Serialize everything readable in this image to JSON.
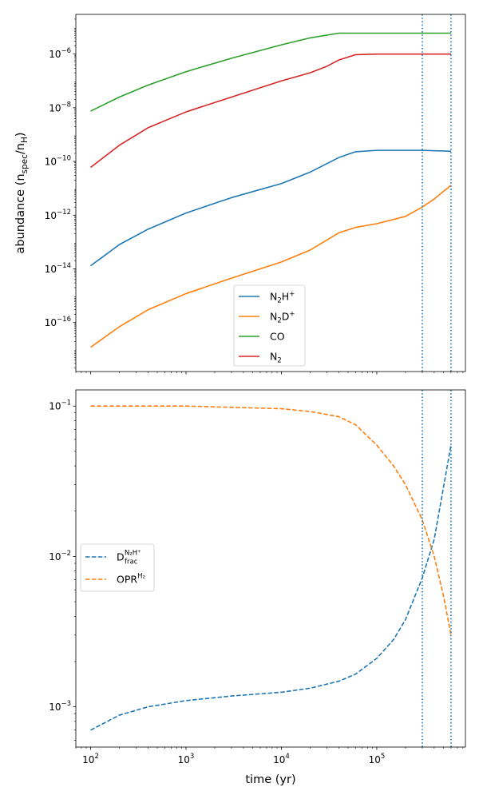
{
  "chart_data": [
    {
      "type": "line",
      "title": "",
      "xlabel": "",
      "ylabel": "abundance (n",
      "ylabel_sub1": "spec",
      "ylabel_mid": "/n",
      "ylabel_sub2": "H",
      "ylabel_end": ")",
      "xscale": "log",
      "yscale": "log",
      "xlim": [
        70,
        850000
      ],
      "ylim": [
        1.5e-18,
        3e-05
      ],
      "x_ticks": [],
      "y_ticks": [
        {
          "value": 1e-06,
          "base": "10",
          "exp": "−6"
        },
        {
          "value": 1e-08,
          "base": "10",
          "exp": "−8"
        },
        {
          "value": 1e-10,
          "base": "10",
          "exp": "−10"
        },
        {
          "value": 1e-12,
          "base": "10",
          "exp": "−12"
        },
        {
          "value": 1e-14,
          "base": "10",
          "exp": "−14"
        },
        {
          "value": 1e-16,
          "base": "10",
          "exp": "−16"
        }
      ],
      "vlines": [
        300000,
        600000
      ],
      "legend_position": "lower-center",
      "series": [
        {
          "name": "N2H+",
          "label_main": "N",
          "label_sub": "2",
          "label_rest": "H",
          "label_sup": "+",
          "color": "#1f77b4",
          "dash": "solid",
          "x": [
            100,
            200,
            400,
            1000,
            3000,
            10000,
            20000,
            40000,
            60000,
            100000,
            300000,
            600000
          ],
          "y": [
            1.3e-14,
            8e-14,
            3e-13,
            1.2e-12,
            4.5e-12,
            1.5e-11,
            4e-11,
            1.4e-10,
            2.3e-10,
            2.6e-10,
            2.6e-10,
            2.4e-10
          ]
        },
        {
          "name": "N2D+",
          "label_main": "N",
          "label_sub": "2",
          "label_rest": "D",
          "label_sup": "+",
          "color": "#ff7f0e",
          "dash": "solid",
          "x": [
            100,
            200,
            400,
            1000,
            3000,
            10000,
            20000,
            40000,
            60000,
            100000,
            200000,
            300000,
            400000,
            600000
          ],
          "y": [
            1.2e-17,
            7e-17,
            3e-16,
            1.2e-15,
            4.5e-15,
            1.8e-14,
            5e-14,
            2.2e-13,
            3.5e-13,
            4.8e-13,
            9e-13,
            2e-12,
            4e-12,
            1.3e-11
          ]
        },
        {
          "name": "CO",
          "label_main": "CO",
          "label_sub": "",
          "label_rest": "",
          "label_sup": "",
          "color": "#2ca02c",
          "dash": "solid",
          "x": [
            100,
            200,
            400,
            1000,
            3000,
            10000,
            20000,
            40000,
            100000,
            600000
          ],
          "y": [
            7.5e-09,
            2.5e-08,
            7e-08,
            2.2e-07,
            7e-07,
            2.2e-06,
            4e-06,
            6e-06,
            6e-06,
            6e-06
          ]
        },
        {
          "name": "N2",
          "label_main": "N",
          "label_sub": "2",
          "label_rest": "",
          "label_sup": "",
          "color": "#d62728",
          "dash": "solid",
          "x": [
            100,
            200,
            400,
            1000,
            3000,
            10000,
            20000,
            30000,
            40000,
            60000,
            100000,
            600000
          ],
          "y": [
            6e-11,
            4e-10,
            1.8e-09,
            7e-09,
            2.5e-08,
            1e-07,
            2e-07,
            3.5e-07,
            6e-07,
            9.5e-07,
            1e-06,
            1e-06
          ]
        }
      ]
    },
    {
      "type": "line",
      "title": "",
      "xlabel": "time (yr)",
      "ylabel": "",
      "xscale": "log",
      "yscale": "log",
      "xlim": [
        70,
        850000
      ],
      "ylim": [
        0.00054,
        0.128
      ],
      "x_ticks": [
        {
          "value": 100,
          "base": "10",
          "exp": "2"
        },
        {
          "value": 1000,
          "base": "10",
          "exp": "3"
        },
        {
          "value": 10000,
          "base": "10",
          "exp": "4"
        },
        {
          "value": 100000,
          "base": "10",
          "exp": "5"
        }
      ],
      "y_ticks": [
        {
          "value": 0.1,
          "base": "10",
          "exp": "−1"
        },
        {
          "value": 0.01,
          "base": "10",
          "exp": "−2"
        },
        {
          "value": 0.001,
          "base": "10",
          "exp": "−3"
        }
      ],
      "vlines": [
        300000,
        600000
      ],
      "legend_position": "center-left",
      "series": [
        {
          "name": "Dfrac N2H+",
          "label_main": "D",
          "label_sub": "frac",
          "label_sup": "N₂H⁺",
          "color": "#1f77b4",
          "dash": "dashed",
          "x": [
            100,
            200,
            400,
            1000,
            3000,
            10000,
            20000,
            40000,
            60000,
            100000,
            150000,
            200000,
            300000,
            400000,
            600000
          ],
          "y": [
            0.0007,
            0.00088,
            0.001,
            0.0011,
            0.00118,
            0.00125,
            0.00133,
            0.00148,
            0.00165,
            0.0021,
            0.0028,
            0.0038,
            0.0072,
            0.013,
            0.055
          ]
        },
        {
          "name": "OPR H2",
          "label_main": "OPR",
          "label_sub": "",
          "label_sup": "H₂",
          "color": "#ff7f0e",
          "dash": "dashed",
          "x": [
            100,
            1000,
            10000,
            20000,
            40000,
            60000,
            100000,
            150000,
            200000,
            300000,
            400000,
            500000,
            600000
          ],
          "y": [
            0.1,
            0.1,
            0.096,
            0.092,
            0.085,
            0.075,
            0.055,
            0.04,
            0.03,
            0.0175,
            0.01,
            0.0055,
            0.003
          ]
        }
      ]
    }
  ]
}
